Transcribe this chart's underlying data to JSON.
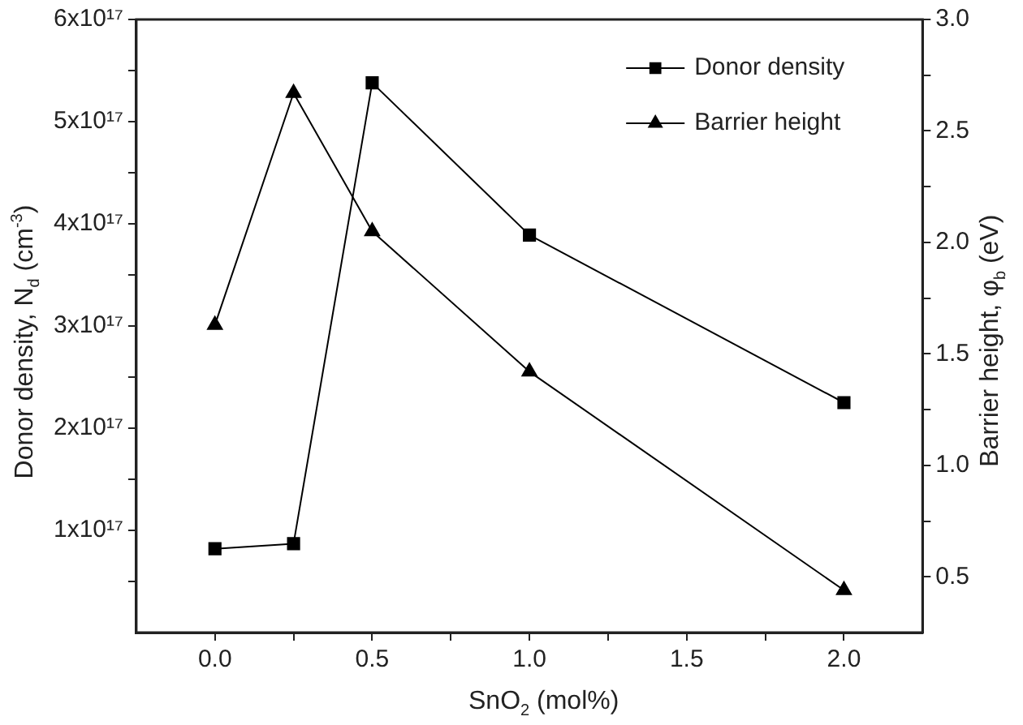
{
  "chart_data": {
    "type": "line",
    "xlabel": "SnO$_{2}$ (mol%)",
    "ylabel": "Donor density, N$_{d}$ (cm$^{-3}$)",
    "y2label": "Barrier height, φ$_{b}$ (eV)",
    "x": [
      0,
      0.25,
      0.5,
      1,
      2
    ],
    "series": [
      {
        "name": "Donor density",
        "color": "#000000",
        "marker": "square",
        "values": [
          8.2e+16,
          8.7e+16,
          5.38e+17,
          3.89e+17,
          2.25e+17
        ]
      },
      {
        "name": "Barrier height",
        "color": "#000000",
        "marker": "triangle",
        "axis": "y2",
        "values": [
          1.63,
          2.67,
          2.05,
          1.42,
          0.44
        ]
      }
    ],
    "xlim": [
      -0.25,
      2.25
    ],
    "xticks": [
      {
        "value": 0,
        "label": "0.0"
      },
      {
        "value": 0.25,
        "label": null
      },
      {
        "value": 0.5,
        "label": "0.5"
      },
      {
        "value": 0.75,
        "label": null
      },
      {
        "value": 1,
        "label": "1.0"
      },
      {
        "value": 1.25,
        "label": null
      },
      {
        "value": 1.5,
        "label": "1.5"
      },
      {
        "value": 1.75,
        "label": null
      },
      {
        "value": 2,
        "label": "2.0"
      }
    ],
    "ylim": [
      0,
      6e+17
    ],
    "yticks": [
      {
        "value": 5e+16,
        "label": null
      },
      {
        "value": 1e+17,
        "label": "1x10¹⁷"
      },
      {
        "value": 1.5e+17,
        "label": null
      },
      {
        "value": 2e+17,
        "label": "2x10¹⁷"
      },
      {
        "value": 2.5e+17,
        "label": null
      },
      {
        "value": 3e+17,
        "label": "3x10¹⁷"
      },
      {
        "value": 3.5e+17,
        "label": null
      },
      {
        "value": 4e+17,
        "label": "4x10¹⁷"
      },
      {
        "value": 4.5e+17,
        "label": null
      },
      {
        "value": 5e+17,
        "label": "5x10¹⁷"
      },
      {
        "value": 5.5e+17,
        "label": null
      },
      {
        "value": 6e+17,
        "label": "6x10¹⁷"
      }
    ],
    "y2lim": [
      0.25,
      3
    ],
    "y2ticks": [
      {
        "value": 0.5,
        "label": "0.5"
      },
      {
        "value": 0.75,
        "label": null
      },
      {
        "value": 1,
        "label": "1.0"
      },
      {
        "value": 1.25,
        "label": null
      },
      {
        "value": 1.5,
        "label": "1.5"
      },
      {
        "value": 1.75,
        "label": null
      },
      {
        "value": 2,
        "label": "2.0"
      },
      {
        "value": 2.25,
        "label": null
      },
      {
        "value": 2.5,
        "label": "2.5"
      },
      {
        "value": 2.75,
        "label": null
      },
      {
        "value": 3,
        "label": "3.0"
      }
    ],
    "grid": false,
    "legend": "top right",
    "line_style": "solid"
  }
}
